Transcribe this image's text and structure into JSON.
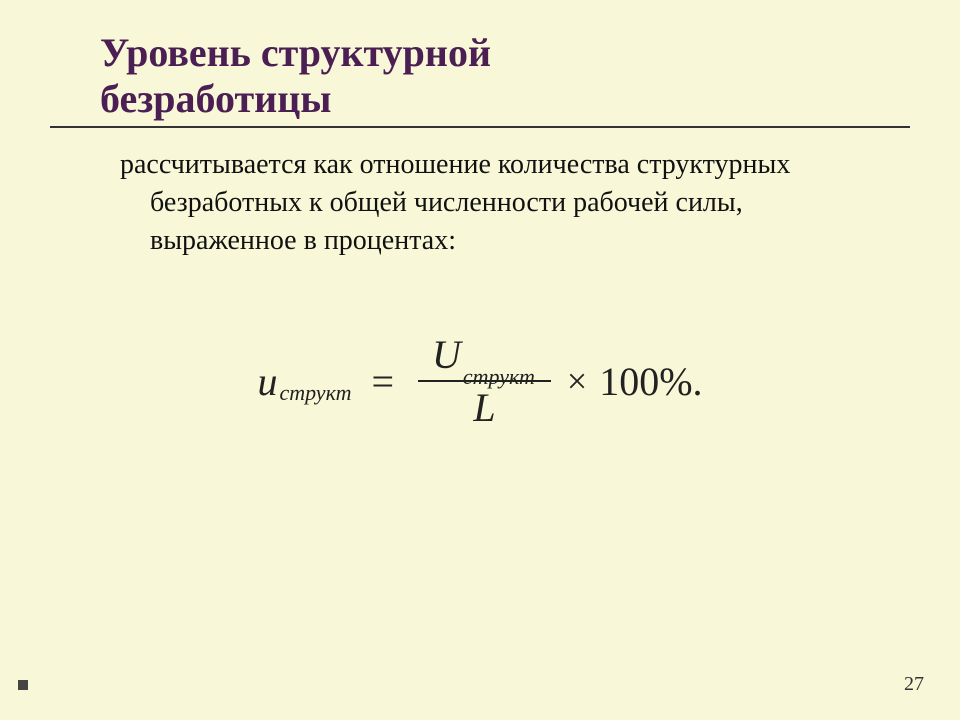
{
  "colors": {
    "background": "#f8f8d8",
    "title": "#4b1f53",
    "rule": "#333333",
    "text": "#111111",
    "formula": "#222222",
    "footer_bullet": "#444444"
  },
  "title": {
    "line1": "Уровень структурной",
    "line2": "безработицы",
    "fontsize": 40,
    "fontweight": "bold"
  },
  "body": {
    "text": "рассчитывается как отношение количества структурных безработных к общей численности рабочей силы, выраженное в процентах:",
    "fontsize": 28
  },
  "formula": {
    "lhs_var": "u",
    "lhs_sub": "структ",
    "eq": "=",
    "num_var": "U",
    "num_sub": "структ",
    "den": "L",
    "times": "×",
    "const": "100%.",
    "fontsize": 40,
    "sub_fontsize": 22
  },
  "footer": {
    "page_number": "27"
  }
}
